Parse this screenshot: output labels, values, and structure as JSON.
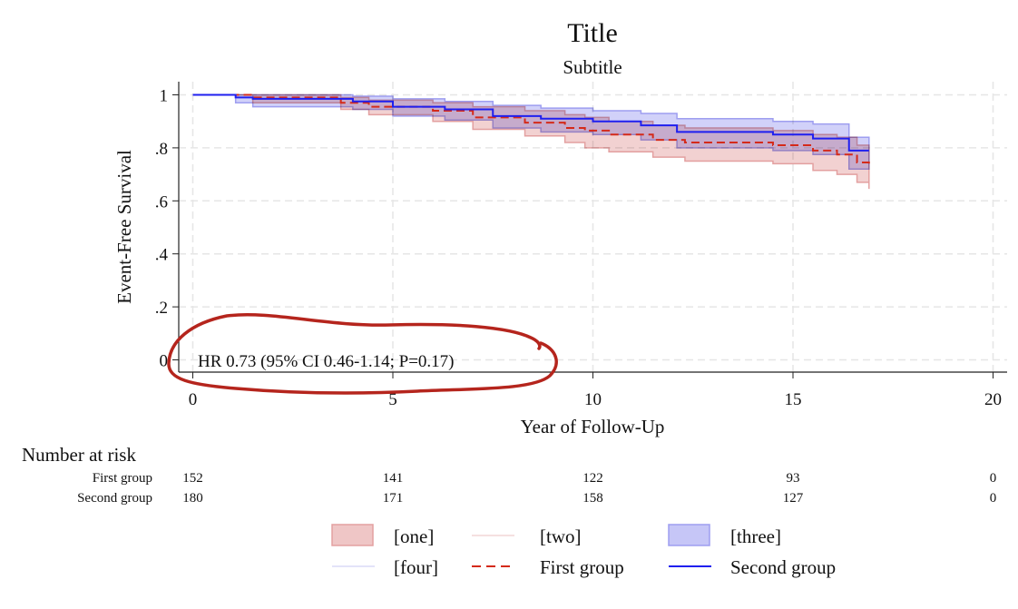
{
  "chart_data": {
    "type": "line",
    "subtype": "kaplan-meier step",
    "title": "Title",
    "subtitle": "Subtitle",
    "xlabel": "Year of Follow-Up",
    "ylabel": "Event-Free Survival",
    "xlim": [
      0,
      20
    ],
    "ylim": [
      0,
      1
    ],
    "xticks": [
      0,
      5,
      10,
      15,
      20
    ],
    "xtick_labels": [
      "0",
      "5",
      "10",
      "15",
      "20"
    ],
    "yticks": [
      0,
      0.2,
      0.4,
      0.6,
      0.8,
      1
    ],
    "ytick_labels": [
      "0",
      ".2",
      ".4",
      ".6",
      ".8",
      "1"
    ],
    "grid": true,
    "annotation": "HR 0.73 (95% CI 0.46-1.14; P=0.17)",
    "annotation_mark_color": "#b5251d",
    "series": [
      {
        "name": "First group",
        "color": "#d42a1a",
        "style": "dashed",
        "ci_area_label": "[one]",
        "ci_line_label": "[two]",
        "ci_fill": "#efc6c6",
        "ci_stroke": "#e3a0a0",
        "x": [
          0,
          1.5,
          3.7,
          4.4,
          6.0,
          7.0,
          8.3,
          9.3,
          9.8,
          10.4,
          11.5,
          12.3,
          14.5,
          15.5,
          16.1,
          16.6,
          16.9
        ],
        "y": [
          1.0,
          0.99,
          0.97,
          0.955,
          0.94,
          0.915,
          0.895,
          0.875,
          0.865,
          0.85,
          0.83,
          0.82,
          0.81,
          0.79,
          0.775,
          0.745,
          0.73
        ],
        "upper": [
          1.0,
          1.0,
          0.99,
          0.98,
          0.97,
          0.955,
          0.94,
          0.925,
          0.915,
          0.9,
          0.885,
          0.875,
          0.865,
          0.85,
          0.84,
          0.81,
          0.8
        ],
        "lower": [
          1.0,
          0.97,
          0.945,
          0.925,
          0.9,
          0.87,
          0.845,
          0.82,
          0.8,
          0.785,
          0.765,
          0.75,
          0.74,
          0.715,
          0.7,
          0.67,
          0.645
        ]
      },
      {
        "name": "Second group",
        "color": "#1f1fef",
        "style": "solid",
        "ci_area_label": "[three]",
        "ci_line_label": "[four]",
        "ci_fill": "#c6c6f7",
        "ci_stroke": "#9e9ef0",
        "x": [
          0,
          1.07,
          1.5,
          4.0,
          5.0,
          6.3,
          7.5,
          8.7,
          10.0,
          11.2,
          12.1,
          14.5,
          15.5,
          16.4,
          16.9
        ],
        "y": [
          1.0,
          0.99,
          0.985,
          0.975,
          0.955,
          0.945,
          0.92,
          0.91,
          0.9,
          0.885,
          0.86,
          0.85,
          0.835,
          0.79,
          0.79
        ],
        "upper": [
          1.0,
          1.0,
          1.0,
          0.995,
          0.985,
          0.975,
          0.96,
          0.95,
          0.94,
          0.93,
          0.91,
          0.9,
          0.89,
          0.84,
          0.84
        ],
        "lower": [
          1.0,
          0.97,
          0.955,
          0.945,
          0.92,
          0.905,
          0.875,
          0.86,
          0.85,
          0.83,
          0.8,
          0.79,
          0.775,
          0.72,
          0.72
        ]
      }
    ],
    "risk_table": {
      "title": "Number at risk",
      "times": [
        0,
        5,
        10,
        15,
        20
      ],
      "rows": [
        {
          "label": "First group",
          "values": [
            "152",
            "141",
            "122",
            "93",
            "0"
          ]
        },
        {
          "label": "Second group",
          "values": [
            "180",
            "171",
            "158",
            "127",
            "0"
          ]
        }
      ]
    },
    "legend": {
      "placement": "bottom",
      "items": [
        {
          "label": "[one]",
          "kind": "area",
          "color": "#efc6c6"
        },
        {
          "label": "[two]",
          "kind": "line",
          "color": "#f2d6d6"
        },
        {
          "label": "[three]",
          "kind": "area",
          "color": "#c6c6f7"
        },
        {
          "label": "[four]",
          "kind": "line",
          "color": "#dadaf7"
        },
        {
          "label": "First group",
          "kind": "dashed",
          "color": "#d42a1a"
        },
        {
          "label": "Second group",
          "kind": "line",
          "color": "#1f1fef"
        }
      ]
    }
  }
}
